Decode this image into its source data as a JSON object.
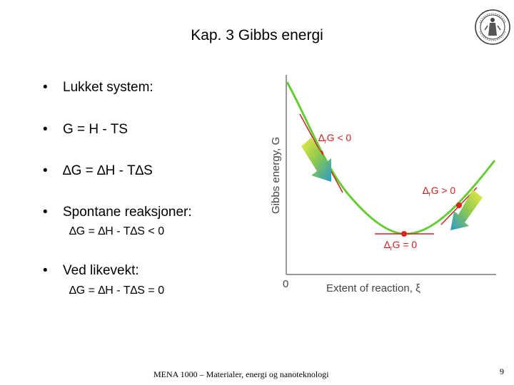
{
  "slide": {
    "title": "Kap. 3 Gibbs energi",
    "bullets": [
      {
        "text": "Lukket system:"
      },
      {
        "text": "G = H - TS"
      },
      {
        "text": "∆G = ∆H - T∆S"
      },
      {
        "text": "Spontane reaksjoner:",
        "sub": "∆G = ∆H - T∆S < 0"
      },
      {
        "text": "Ved likevekt:",
        "sub": "∆G = ∆H - T∆S = 0"
      }
    ],
    "bullet_symbol": "•"
  },
  "diagram": {
    "y_axis_label": "Gibbs energy, G",
    "x_axis_label": "Extent of reaction, ξ",
    "origin_label": "0",
    "labels": {
      "left_slope": "∆rG < 0",
      "right_slope": "∆rG > 0",
      "minimum": "∆rG = 0"
    },
    "colors": {
      "curve": "#66cc33",
      "tangent": "#cc2222",
      "arrow_start": "#e8e03a",
      "arrow_end": "#2a9ac8"
    }
  },
  "footer": {
    "text": "MENA 1000 – Materialer, energi og nanoteknologi",
    "page_number": "9"
  },
  "logo": {
    "icon": "university-seal-icon"
  }
}
